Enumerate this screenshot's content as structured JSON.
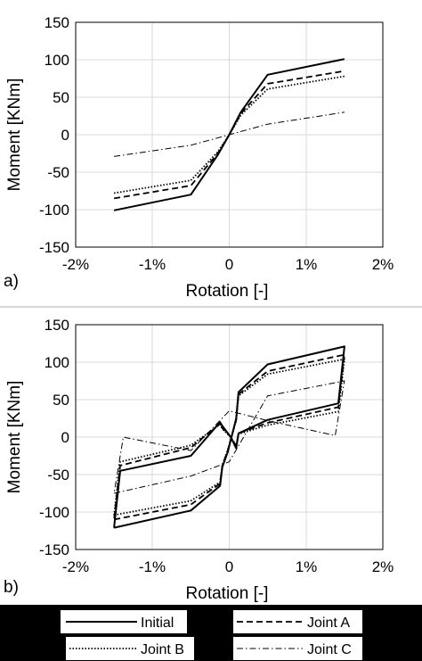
{
  "panels": {
    "a": {
      "letter": "a)"
    },
    "b": {
      "letter": "b)"
    }
  },
  "chart_data": [
    {
      "type": "line",
      "xlabel": "Rotation [-]",
      "ylabel": "Moment [KNm]",
      "xlim": [
        -0.02,
        0.02
      ],
      "ylim": [
        -150,
        150
      ],
      "xticks": [
        -0.02,
        -0.01,
        0,
        0.01,
        0.02
      ],
      "xtick_labels": [
        "-2%",
        "-1%",
        "0",
        "1%",
        "2%"
      ],
      "yticks": [
        150,
        100,
        50,
        0,
        -50,
        -100,
        -150
      ],
      "ytick_labels": [
        "150",
        "100",
        "50",
        "0",
        "-50",
        "-100",
        "-150"
      ],
      "grid": true,
      "series": [
        {
          "name": "Initial",
          "dash": "solid",
          "stroke_width": 2,
          "x": [
            -0.015,
            -0.005,
            -0.0015,
            0,
            0.0015,
            0.005,
            0.015
          ],
          "y": [
            -101,
            -80,
            -27,
            0,
            30,
            80,
            101
          ]
        },
        {
          "name": "Joint A",
          "dash": "dashed",
          "stroke_width": 1.8,
          "x": [
            -0.015,
            -0.005,
            -0.0015,
            0,
            0.0015,
            0.005,
            0.015
          ],
          "y": [
            -85,
            -68,
            -25,
            0,
            28,
            68,
            85
          ]
        },
        {
          "name": "Joint B",
          "dash": "dotted",
          "stroke_width": 1.8,
          "x": [
            -0.015,
            -0.005,
            -0.0015,
            0,
            0.0015,
            0.005,
            0.015
          ],
          "y": [
            -78,
            -61,
            -23,
            0,
            26,
            61,
            78
          ]
        },
        {
          "name": "Joint C",
          "dash": "dashdot",
          "stroke_width": 1,
          "x": [
            -0.015,
            -0.005,
            0,
            0.005,
            0.015
          ],
          "y": [
            -29,
            -14,
            0,
            14,
            30
          ]
        }
      ]
    },
    {
      "type": "line",
      "xlabel": "Rotation [-]",
      "ylabel": "Moment [KNm]",
      "xlim": [
        -0.02,
        0.02
      ],
      "ylim": [
        -150,
        150
      ],
      "xticks": [
        -0.02,
        -0.01,
        0,
        0.01,
        0.02
      ],
      "xtick_labels": [
        "-2%",
        "-1%",
        "0",
        "1%",
        "2%"
      ],
      "yticks": [
        150,
        100,
        50,
        0,
        -50,
        -100,
        -150
      ],
      "ytick_labels": [
        "150",
        "100",
        "50",
        "0",
        "-50",
        "-100",
        "-150"
      ],
      "grid": true,
      "series": [
        {
          "name": "Initial",
          "dash": "solid",
          "stroke_width": 2,
          "x": [
            -0.015,
            -0.005,
            -0.0012,
            -0.0009,
            -0.0002,
            0.0009,
            0.0012,
            0.005,
            0.015,
            0.0142,
            0.005,
            0.0012,
            0.0009,
            0.0002,
            -0.0009,
            -0.0012,
            -0.005,
            -0.0142,
            -0.015
          ],
          "y": [
            -121,
            -98,
            -65,
            -40,
            -20,
            25,
            60,
            97,
            121,
            45,
            23,
            5,
            -15,
            0,
            15,
            20,
            -25,
            -45,
            -121
          ]
        },
        {
          "name": "Joint A",
          "dash": "dashed",
          "stroke_width": 1.8,
          "x": [
            -0.015,
            -0.005,
            -0.0012,
            -0.0009,
            -0.0002,
            0.0009,
            0.0012,
            0.005,
            0.015,
            0.0142,
            0.005,
            0.0012,
            0.0009,
            0.0002,
            -0.0009,
            -0.0012,
            -0.005,
            -0.0142,
            -0.015
          ],
          "y": [
            -110,
            -90,
            -62,
            -38,
            -18,
            23,
            57,
            88,
            110,
            40,
            19,
            5,
            -12,
            0,
            12,
            18,
            -14,
            -38,
            -110
          ]
        },
        {
          "name": "Joint B",
          "dash": "dotted",
          "stroke_width": 1.8,
          "x": [
            -0.015,
            -0.005,
            -0.0012,
            -0.0009,
            -0.0002,
            0.0009,
            0.0012,
            0.005,
            0.015,
            0.0142,
            0.005,
            0.0012,
            0.0009,
            0.0002,
            -0.0009,
            -0.0012,
            -0.005,
            -0.0142,
            -0.015
          ],
          "y": [
            -104,
            -85,
            -60,
            -37,
            -17,
            22,
            55,
            84,
            104,
            34,
            16,
            4,
            -11,
            0,
            11,
            17,
            -11,
            -33,
            -104
          ]
        },
        {
          "name": "Joint C",
          "dash": "dashdot",
          "stroke_width": 1,
          "x": [
            -0.015,
            -0.005,
            0,
            0.005,
            0.015,
            0.0138,
            0.005,
            0,
            -0.005,
            -0.0138,
            -0.015
          ],
          "y": [
            -75,
            -52,
            -33,
            55,
            75,
            2,
            22,
            35,
            -18,
            0,
            -75
          ]
        }
      ]
    }
  ]
}
